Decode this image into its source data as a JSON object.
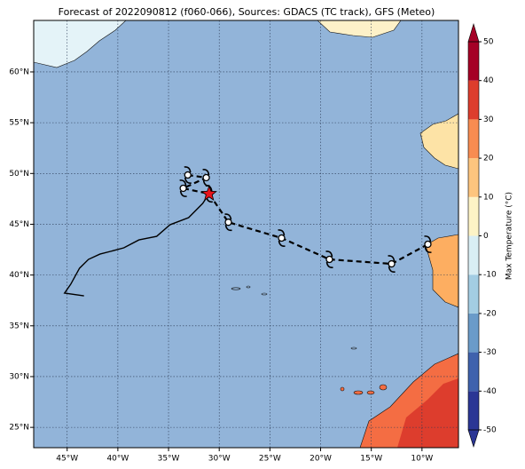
{
  "title": "Forecast of 2022090812 (f060-066), Sources: GDACS (TC track), GFS (Meteo)",
  "map": {
    "xlim": [
      -48.3,
      -6.4
    ],
    "ylim": [
      23,
      65.07
    ],
    "xticks": [
      {
        "value": -45,
        "label": "45°W"
      },
      {
        "value": -40,
        "label": "40°W"
      },
      {
        "value": -35,
        "label": "35°W"
      },
      {
        "value": -30,
        "label": "30°W"
      },
      {
        "value": -25,
        "label": "25°W"
      },
      {
        "value": -20,
        "label": "20°W"
      },
      {
        "value": -15,
        "label": "15°W"
      },
      {
        "value": -10,
        "label": "10°W"
      }
    ],
    "yticks": [
      {
        "value": 25,
        "label": "25°N"
      },
      {
        "value": 30,
        "label": "30°N"
      },
      {
        "value": 35,
        "label": "35°N"
      },
      {
        "value": 40,
        "label": "40°N"
      },
      {
        "value": 45,
        "label": "45°N"
      },
      {
        "value": 50,
        "label": "50°N"
      },
      {
        "value": 55,
        "label": "55°N"
      },
      {
        "value": 60,
        "label": "60°N"
      }
    ],
    "grid": true,
    "ocean_color": "#92b4d9",
    "observed_track": {
      "color": "#000000",
      "lon": [
        -43.34,
        -45.26,
        -44.65,
        -43.78,
        -42.9,
        -41.77,
        -40.72,
        -39.41,
        -37.92,
        -36.17,
        -34.86,
        -33.02,
        -31.63,
        -31.0
      ],
      "lat": [
        37.95,
        38.22,
        39.09,
        40.67,
        41.54,
        42.06,
        42.33,
        42.68,
        43.46,
        43.81,
        44.95,
        45.65,
        47.05,
        48.0
      ]
    },
    "forecast_track": {
      "color": "#000000",
      "lon": [
        -33.1,
        -31.28,
        -33.55,
        -31.0,
        -29.1,
        -23.85,
        -19.13,
        -13.0,
        -9.42
      ],
      "lat": [
        49.85,
        49.59,
        48.54,
        48.0,
        45.2,
        43.64,
        41.54,
        41.1,
        43.03
      ]
    },
    "current_position": {
      "lon": -31.0,
      "lat": 48.0,
      "color": "#e8141c"
    }
  },
  "colorbar": {
    "label": "Max Temperature (°C)",
    "lim": [
      -50,
      50
    ],
    "ticks": [
      50,
      40,
      30,
      20,
      10,
      0,
      -10,
      -20,
      -30,
      -40,
      -50
    ],
    "colors": [
      "#2b3695",
      "#3f62ad",
      "#6a9bc9",
      "#a3cde3",
      "#d9eef4",
      "#fdf3c6",
      "#fdc57e",
      "#f88c51",
      "#dd3d2d",
      "#a50026"
    ]
  }
}
